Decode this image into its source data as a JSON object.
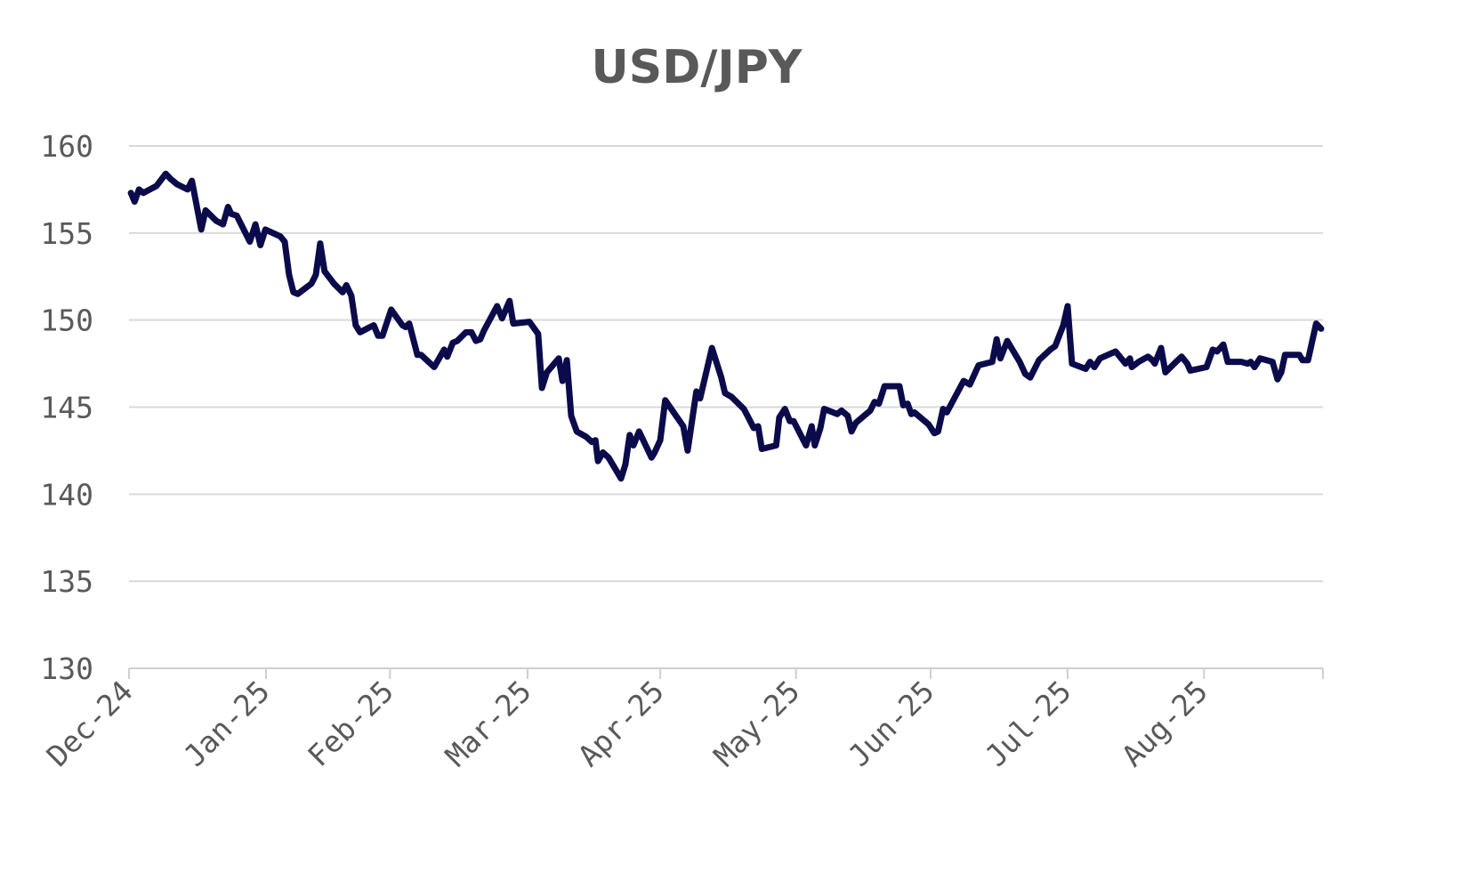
{
  "chart_data": {
    "type": "line",
    "title": "USD/JPY",
    "xlabel": "",
    "ylabel": "",
    "ylim": [
      130,
      160
    ],
    "yticks": [
      130,
      135,
      140,
      145,
      150,
      155,
      160
    ],
    "grid": true,
    "x_unit": "trading days since start of Dec-24",
    "xlim": [
      0,
      191.7
    ],
    "xticks": [
      {
        "label": "Dec-24",
        "x": 0
      },
      {
        "label": "Jan-25",
        "x": 22
      },
      {
        "label": "Feb-25",
        "x": 41.9
      },
      {
        "label": "Mar-25",
        "x": 64
      },
      {
        "label": "Apr-25",
        "x": 85.3
      },
      {
        "label": "May-25",
        "x": 107.1
      },
      {
        "label": "Jun-25",
        "x": 128.7
      },
      {
        "label": "Jul-25",
        "x": 150.7
      },
      {
        "label": "Aug-25",
        "x": 172.6
      }
    ],
    "series": [
      {
        "name": "USD/JPY",
        "color": "#0b0b4b",
        "x": [
          0.3,
          0.9,
          1.6,
          2.3,
          4.4,
          5.9,
          6.7,
          7.7,
          9.4,
          10.1,
          11.6,
          12.3,
          14,
          15.1,
          15.9,
          16.4,
          17.3,
          19.4,
          20.3,
          21.1,
          21.9,
          24.3,
          25,
          25.7,
          26.4,
          27.1,
          29.3,
          30,
          30.7,
          31.4,
          32.9,
          34.3,
          34.9,
          35.7,
          36.4,
          37.1,
          38.7,
          39.3,
          40,
          40.7,
          42.1,
          43.9,
          44.4,
          45,
          46.3,
          46.9,
          49,
          50.6,
          51.1,
          52,
          52.7,
          54.1,
          55,
          55.7,
          56.4,
          57,
          59.1,
          59.9,
          61.1,
          61.7,
          64.3,
          65.7,
          66.3,
          67.1,
          69,
          69.6,
          70.3,
          71,
          71.9,
          73.4,
          74.3,
          74.9,
          75.3,
          76.1,
          77,
          79,
          79.7,
          80.4,
          81,
          81.9,
          83.9,
          84.4,
          85.3,
          86.1,
          89,
          89.7,
          91.1,
          91.7,
          93.6,
          95.1,
          95.7,
          96.7,
          98.7,
          99.3,
          100.3,
          101,
          101.6,
          103.9,
          104.4,
          105.3,
          106.1,
          106.7,
          108.7,
          109.6,
          110.1,
          111,
          111.6,
          113.7,
          114.4,
          115.4,
          116,
          116.7,
          119,
          119.7,
          120.4,
          121.3,
          123.7,
          124.3,
          125,
          125.6,
          126.1,
          128.4,
          129.3,
          129.9,
          130.7,
          131.3,
          134,
          135,
          136.4,
          138.6,
          139.3,
          139.9,
          141,
          143,
          143.9,
          144.7,
          146.1,
          147.9,
          148.7,
          150,
          150.7,
          151.4,
          153.6,
          154.3,
          155,
          155.9,
          158.4,
          159.3,
          160,
          160.7,
          161,
          162.1,
          163.6,
          164.3,
          164.7,
          165.7,
          166.4,
          168.1,
          169,
          169.9,
          170.4,
          173,
          174,
          174.7,
          175.7,
          176.4,
          178.6,
          179.6,
          180.1,
          180.7,
          181.6,
          183.6,
          184.4,
          185,
          185.6,
          187.1,
          187.9,
          188.4,
          189.3,
          190.6,
          191.4
        ],
        "values": [
          157.3,
          156.8,
          157.5,
          157.3,
          157.7,
          158.4,
          158.1,
          157.8,
          157.5,
          158.0,
          155.2,
          156.3,
          155.7,
          155.5,
          156.5,
          156.1,
          156.0,
          154.5,
          155.5,
          154.3,
          155.2,
          154.8,
          154.5,
          152.6,
          151.6,
          151.5,
          152.1,
          152.6,
          154.4,
          152.8,
          152.1,
          151.6,
          152.0,
          151.4,
          149.7,
          149.3,
          149.6,
          149.7,
          149.1,
          149.1,
          150.6,
          149.7,
          149.6,
          149.8,
          148.0,
          148.0,
          147.3,
          148.3,
          147.9,
          148.7,
          148.8,
          149.3,
          149.3,
          148.8,
          148.9,
          149.4,
          150.8,
          150.1,
          151.1,
          149.8,
          149.9,
          149.2,
          146.1,
          147.0,
          147.8,
          146.5,
          147.7,
          144.5,
          143.6,
          143.3,
          143.0,
          143.1,
          141.9,
          142.4,
          142.1,
          140.9,
          141.7,
          143.4,
          142.8,
          143.6,
          142.1,
          142.4,
          143.1,
          145.4,
          143.9,
          142.5,
          145.9,
          145.5,
          148.4,
          146.7,
          145.8,
          145.6,
          144.9,
          144.5,
          143.8,
          143.9,
          142.6,
          142.8,
          144.4,
          144.9,
          144.2,
          144.2,
          142.8,
          143.9,
          142.8,
          143.8,
          144.9,
          144.6,
          144.8,
          144.5,
          143.6,
          144.1,
          144.8,
          145.3,
          145.2,
          146.2,
          146.2,
          145.1,
          145.2,
          144.6,
          144.7,
          144.0,
          143.5,
          143.6,
          144.9,
          144.7,
          146.5,
          146.3,
          147.4,
          147.6,
          148.9,
          147.8,
          148.8,
          147.6,
          146.9,
          146.7,
          147.7,
          148.3,
          148.5,
          149.7,
          150.8,
          147.5,
          147.2,
          147.6,
          147.3,
          147.8,
          148.2,
          147.8,
          147.5,
          147.8,
          147.3,
          147.6,
          147.9,
          147.7,
          147.5,
          148.4,
          147.0,
          147.6,
          147.9,
          147.5,
          147.1,
          147.3,
          148.3,
          148.2,
          148.6,
          147.6,
          147.6,
          147.5,
          147.6,
          147.3,
          147.8,
          147.6,
          146.6,
          147.0,
          148.0,
          148.0,
          148.0,
          147.7,
          147.7,
          149.8,
          149.5
        ]
      }
    ]
  }
}
